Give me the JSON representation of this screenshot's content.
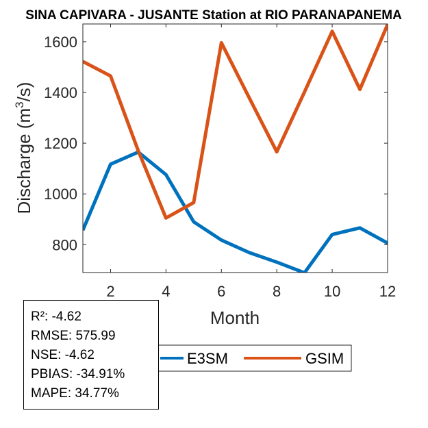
{
  "chart_data": {
    "type": "line",
    "title": "SINA CAPIVARA - JUSANTE  Station at  RIO PARANAPANEMA",
    "xlabel": "Month",
    "ylabel": "Discharge (m³/s)",
    "ylabel_main": "Discharge (m",
    "ylabel_sup": "3",
    "ylabel_tail": "/s)",
    "xlim": [
      1,
      12
    ],
    "ylim": [
      690,
      1670
    ],
    "xticks": [
      2,
      4,
      6,
      8,
      10,
      12
    ],
    "yticks": [
      800,
      1000,
      1200,
      1400,
      1600
    ],
    "x": [
      1,
      2,
      3,
      4,
      5,
      6,
      7,
      8,
      9,
      10,
      11,
      12
    ],
    "series": [
      {
        "name": "E3SM",
        "color": "#0072BD",
        "values": [
          857,
          1117,
          1165,
          1076,
          890,
          818,
          769,
          731,
          689,
          840,
          866,
          806
        ]
      },
      {
        "name": "GSIM",
        "color": "#D95319",
        "values": [
          1522,
          1465,
          1170,
          905,
          966,
          1596,
          1380,
          1166,
          1402,
          1641,
          1412,
          1668
        ]
      }
    ],
    "legend": [
      "E3SM",
      "GSIM"
    ],
    "legend_position": "below-right"
  },
  "stats": {
    "r2": "R²: -4.62",
    "rmse": "RMSE: 575.99",
    "nse": "NSE: -4.62",
    "pbias": "PBIAS: -34.91%",
    "mape": "MAPE: 34.77%"
  }
}
